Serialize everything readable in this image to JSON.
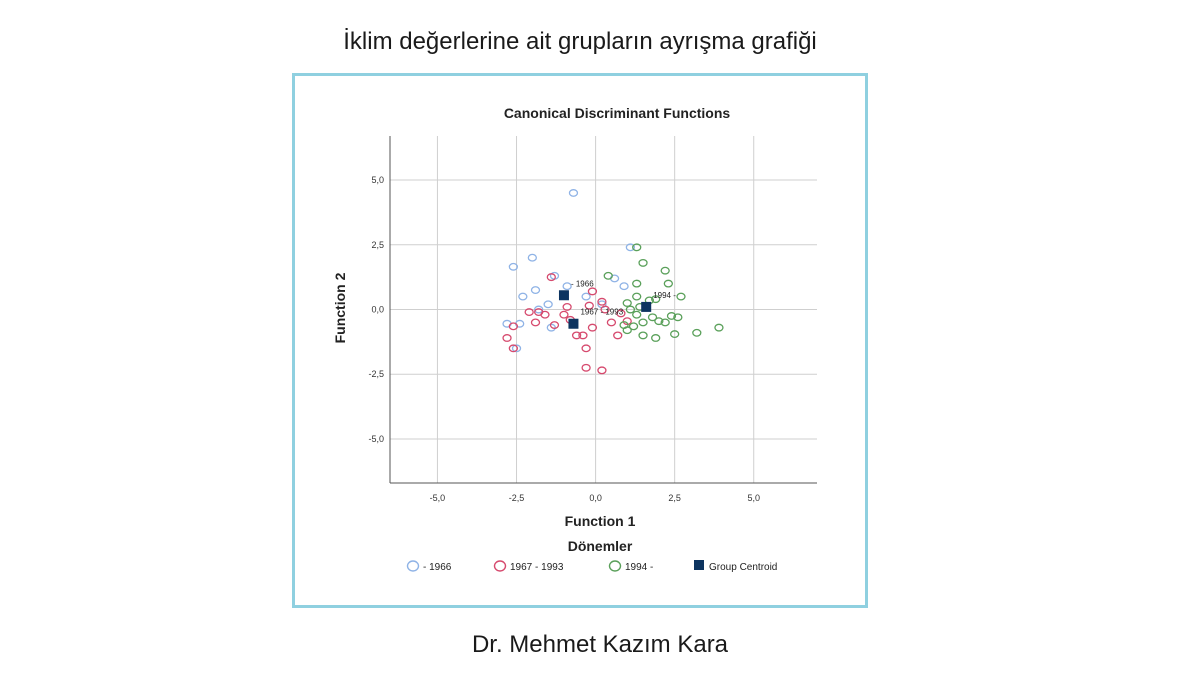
{
  "slide": {
    "title": "İklim değerlerine ait grupların ayrışma grafiği",
    "author": "Dr. Mehmet Kazım Kara"
  },
  "colors": {
    "frame_border": "#8fd0e0",
    "series_1966": "#8fb3e6",
    "series_1967_1993": "#d64a6e",
    "series_1994": "#5aa05a",
    "centroid": "#0d3460"
  },
  "chart_data": {
    "type": "scatter",
    "title": "Canonical Discriminant Functions",
    "xlabel": "Function 1",
    "ylabel": "Function 2",
    "xlim": [
      -6.5,
      7.0
    ],
    "ylim": [
      -6.7,
      6.7
    ],
    "xticks": [
      -5.0,
      -2.5,
      0.0,
      2.5,
      5.0
    ],
    "yticks": [
      5.0,
      2.5,
      0.0,
      -2.5,
      -5.0
    ],
    "xtick_labels": [
      "-5,0",
      "-2,5",
      "0,0",
      "2,5",
      "5,0"
    ],
    "ytick_labels": [
      "5,0",
      "2,5",
      "0,0",
      "-2,5",
      "-5,0"
    ],
    "grid": true,
    "legend_title": "Dönemler",
    "legend_position": "bottom",
    "series": [
      {
        "name": "- 1966",
        "legend_label": "- 1966",
        "marker": "open-circle",
        "color": "#8fb3e6",
        "points": [
          [
            -0.7,
            4.5
          ],
          [
            -2.0,
            2.0
          ],
          [
            -2.6,
            1.65
          ],
          [
            -1.3,
            1.3
          ],
          [
            -2.3,
            0.5
          ],
          [
            -1.9,
            0.75
          ],
          [
            -0.9,
            0.9
          ],
          [
            -1.5,
            0.2
          ],
          [
            1.1,
            2.4
          ],
          [
            0.6,
            1.2
          ],
          [
            -2.8,
            -0.55
          ],
          [
            -2.4,
            -0.55
          ],
          [
            -2.5,
            -1.5
          ],
          [
            -0.3,
            0.5
          ],
          [
            0.2,
            0.2
          ],
          [
            -1.4,
            -0.7
          ],
          [
            -1.8,
            0.0
          ],
          [
            0.9,
            0.9
          ]
        ]
      },
      {
        "name": "1967 - 1993",
        "legend_label": "1967 - 1993",
        "marker": "open-circle",
        "color": "#d64a6e",
        "points": [
          [
            -1.4,
            1.25
          ],
          [
            -0.1,
            0.7
          ],
          [
            0.2,
            0.3
          ],
          [
            -1.8,
            -0.1
          ],
          [
            -1.0,
            -0.2
          ],
          [
            -0.8,
            -0.4
          ],
          [
            -0.6,
            -1.0
          ],
          [
            -0.4,
            -1.0
          ],
          [
            -0.1,
            -0.7
          ],
          [
            -0.3,
            -1.5
          ],
          [
            -0.3,
            -2.25
          ],
          [
            0.2,
            -2.35
          ],
          [
            -2.6,
            -1.5
          ],
          [
            -2.8,
            -1.1
          ],
          [
            -2.6,
            -0.65
          ],
          [
            -1.3,
            -0.6
          ],
          [
            0.5,
            -0.5
          ],
          [
            0.8,
            -0.15
          ],
          [
            0.3,
            0.0
          ],
          [
            -0.9,
            0.1
          ],
          [
            0.7,
            -1.0
          ],
          [
            -1.6,
            -0.2
          ],
          [
            -1.9,
            -0.5
          ],
          [
            -2.1,
            -0.1
          ],
          [
            1.0,
            -0.45
          ],
          [
            -0.2,
            0.15
          ]
        ]
      },
      {
        "name": "1994 -",
        "legend_label": "1994 -",
        "marker": "open-circle",
        "color": "#5aa05a",
        "points": [
          [
            1.3,
            2.4
          ],
          [
            1.5,
            1.8
          ],
          [
            0.4,
            1.3
          ],
          [
            1.3,
            1.0
          ],
          [
            2.2,
            1.5
          ],
          [
            2.3,
            1.0
          ],
          [
            2.7,
            0.5
          ],
          [
            1.9,
            0.4
          ],
          [
            1.0,
            0.25
          ],
          [
            1.4,
            0.1
          ],
          [
            1.8,
            -0.3
          ],
          [
            2.0,
            -0.45
          ],
          [
            1.5,
            -0.5
          ],
          [
            1.2,
            -0.65
          ],
          [
            0.9,
            -0.6
          ],
          [
            1.0,
            -0.8
          ],
          [
            1.5,
            -1.0
          ],
          [
            1.9,
            -1.1
          ],
          [
            2.5,
            -0.95
          ],
          [
            2.6,
            -0.3
          ],
          [
            2.4,
            -0.25
          ],
          [
            3.2,
            -0.9
          ],
          [
            3.9,
            -0.7
          ],
          [
            1.3,
            -0.2
          ],
          [
            2.2,
            -0.5
          ],
          [
            1.7,
            0.35
          ],
          [
            1.1,
            0.0
          ],
          [
            1.3,
            0.5
          ]
        ]
      }
    ],
    "centroids": {
      "name": "Group Centroid",
      "legend_label": "Group Centroid",
      "marker": "filled-square",
      "color": "#0d3460",
      "points": [
        {
          "x": -1.0,
          "y": 0.55,
          "label": "- 1966"
        },
        {
          "x": -0.7,
          "y": -0.55,
          "label": "1967 - 1993"
        },
        {
          "x": 1.6,
          "y": 0.1,
          "label": "1994 -"
        }
      ]
    }
  }
}
